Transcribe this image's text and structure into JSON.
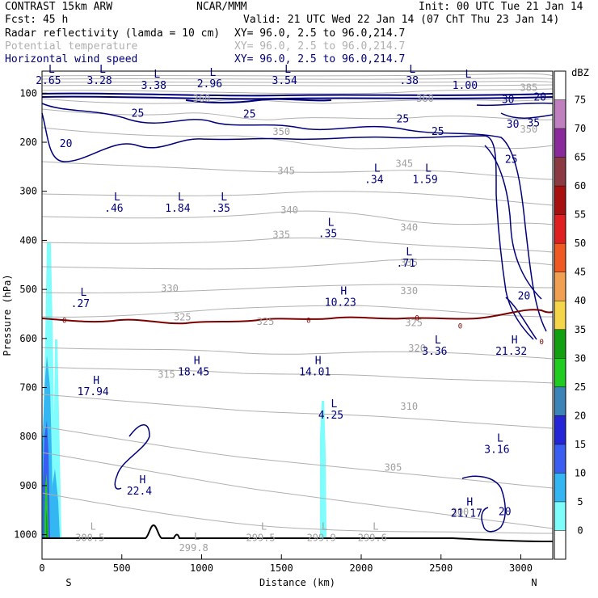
{
  "header": {
    "model": "CONTRAST 15km ARW",
    "producer": "NCAR/MMM",
    "init": "Init: 00 UTC Tue 21 Jan 14",
    "fcst": "Fcst:  45 h",
    "valid": "Valid: 21 UTC Wed 22 Jan 14 (07 ChT Thu 23 Jan 14)",
    "fields": [
      {
        "name": "Radar reflectivity (lamda = 10 cm)",
        "xy": "XY=  96.0,  2.5 to  96.0,214.7",
        "color": "#000000"
      },
      {
        "name": "Potential temperature",
        "xy": "XY=  96.0,  2.5 to  96.0,214.7",
        "color": "#b0b0b0"
      },
      {
        "name": "Horizontal wind speed",
        "xy": "XY=  96.0,  2.5 to  96.0,214.7",
        "color": "#00007a"
      }
    ]
  },
  "chart_data": {
    "type": "cross-section",
    "xlabel": "Distance (km)",
    "ylabel": "Pressure (hPa)",
    "x_ticks": [
      0,
      500,
      1000,
      1500,
      2000,
      2500,
      3000
    ],
    "y_ticks": [
      100,
      200,
      300,
      400,
      500,
      600,
      700,
      800,
      900,
      1000
    ],
    "xlim": [
      0,
      3200
    ],
    "ylim": [
      1050,
      55
    ],
    "endpoints": {
      "left": "S",
      "right": "N"
    },
    "colorbar": {
      "unit": "dBZ",
      "levels": [
        0,
        5,
        10,
        15,
        20,
        25,
        30,
        35,
        40,
        45,
        50,
        55,
        60,
        65,
        70,
        75
      ],
      "colors": [
        "#ffffff",
        "#7ffcfc",
        "#33b6f2",
        "#3a5ef2",
        "#2525d8",
        "#3c84b8",
        "#1fcc1f",
        "#10a010",
        "#f5d54a",
        "#f0a050",
        "#f05a22",
        "#e02020",
        "#a81010",
        "#8a3a40",
        "#8a2a9a",
        "#c080c0",
        "#ffffff"
      ]
    },
    "theta_labels": [
      {
        "text": "385",
        "x": 3050,
        "y": 95
      },
      {
        "text": "360",
        "x": 1000,
        "y": 118
      },
      {
        "text": "360",
        "x": 2400,
        "y": 118
      },
      {
        "text": "350",
        "x": 1500,
        "y": 185
      },
      {
        "text": "350",
        "x": 3050,
        "y": 180
      },
      {
        "text": "345",
        "x": 1530,
        "y": 265
      },
      {
        "text": "345",
        "x": 2270,
        "y": 250
      },
      {
        "text": "340",
        "x": 1550,
        "y": 345
      },
      {
        "text": "340",
        "x": 2300,
        "y": 380
      },
      {
        "text": "335",
        "x": 1500,
        "y": 395
      },
      {
        "text": "335",
        "x": 2300,
        "y": 452
      },
      {
        "text": "330",
        "x": 800,
        "y": 505
      },
      {
        "text": "330",
        "x": 2300,
        "y": 510
      },
      {
        "text": "325",
        "x": 880,
        "y": 563
      },
      {
        "text": "325",
        "x": 1400,
        "y": 572
      },
      {
        "text": "325",
        "x": 2330,
        "y": 575
      },
      {
        "text": "320",
        "x": 2350,
        "y": 627
      },
      {
        "text": "315",
        "x": 780,
        "y": 680
      },
      {
        "text": "310",
        "x": 2300,
        "y": 745
      },
      {
        "text": "305",
        "x": 2200,
        "y": 870
      },
      {
        "text": "300",
        "x": 2620,
        "y": 960
      }
    ],
    "wind_labels": [
      {
        "text": "30",
        "x": 2920,
        "y": 120
      },
      {
        "text": "30",
        "x": 2950,
        "y": 170
      },
      {
        "text": "35",
        "x": 3080,
        "y": 168
      },
      {
        "text": "20",
        "x": 3120,
        "y": 115
      },
      {
        "text": "25",
        "x": 2260,
        "y": 160
      },
      {
        "text": "25",
        "x": 2480,
        "y": 185
      },
      {
        "text": "25",
        "x": 2940,
        "y": 242
      },
      {
        "text": "25",
        "x": 600,
        "y": 148
      },
      {
        "text": "25",
        "x": 1300,
        "y": 150
      },
      {
        "text": "20",
        "x": 150,
        "y": 210
      },
      {
        "text": "20",
        "x": 3020,
        "y": 520
      },
      {
        "text": "20",
        "x": 2900,
        "y": 960
      }
    ],
    "freezing_labels": [
      {
        "text": "0",
        "x": 140,
        "y": 568
      },
      {
        "text": "0",
        "x": 1670,
        "y": 568
      },
      {
        "text": "0",
        "x": 2350,
        "y": 563
      },
      {
        "text": "0",
        "x": 2620,
        "y": 580
      },
      {
        "text": "0",
        "x": 3130,
        "y": 612
      }
    ],
    "extrema": [
      {
        "type": "L",
        "value": "2.65",
        "x": 40,
        "y": 78
      },
      {
        "type": "L",
        "value": "3.28",
        "x": 360,
        "y": 78
      },
      {
        "type": "L",
        "value": "3.38",
        "x": 700,
        "y": 88
      },
      {
        "type": "L",
        "value": "2.96",
        "x": 1050,
        "y": 85
      },
      {
        "type": "L",
        "value": "3.54",
        "x": 1520,
        "y": 78
      },
      {
        "type": "L",
        "value": ".38",
        "x": 2300,
        "y": 78
      },
      {
        "type": "L",
        "value": "1.00",
        "x": 2650,
        "y": 88
      },
      {
        "type": "L",
        "value": ".34",
        "x": 2080,
        "y": 280
      },
      {
        "type": "L",
        "value": "1.59",
        "x": 2400,
        "y": 280
      },
      {
        "type": "L",
        "value": ".46",
        "x": 450,
        "y": 338
      },
      {
        "type": "L",
        "value": "1.84",
        "x": 850,
        "y": 338
      },
      {
        "type": "L",
        "value": ".35",
        "x": 1120,
        "y": 338
      },
      {
        "type": "L",
        "value": ".35",
        "x": 1790,
        "y": 390
      },
      {
        "type": "L",
        "value": ".71",
        "x": 2280,
        "y": 450
      },
      {
        "type": "L",
        "value": ".27",
        "x": 240,
        "y": 533
      },
      {
        "type": "H",
        "value": "10.23",
        "x": 1870,
        "y": 530
      },
      {
        "type": "L",
        "value": "3.36",
        "x": 2460,
        "y": 630
      },
      {
        "type": "H",
        "value": "21.32",
        "x": 2940,
        "y": 630
      },
      {
        "type": "H",
        "value": "18.45",
        "x": 950,
        "y": 672
      },
      {
        "type": "H",
        "value": "14.01",
        "x": 1710,
        "y": 672
      },
      {
        "type": "H",
        "value": "17.94",
        "x": 320,
        "y": 712
      },
      {
        "type": "L",
        "value": "4.25",
        "x": 1810,
        "y": 760
      },
      {
        "type": "L",
        "value": "3.16",
        "x": 2850,
        "y": 830
      },
      {
        "type": "H",
        "value": "22.4",
        "x": 610,
        "y": 915
      },
      {
        "type": "H",
        "value": "21.17",
        "x": 2660,
        "y": 960
      },
      {
        "type": "L",
        "value": "300.5",
        "x": 300,
        "y": 1010
      },
      {
        "type": "L",
        "value": "299.8",
        "x": 950,
        "y": 1030
      },
      {
        "type": "L",
        "value": "299.5",
        "x": 1370,
        "y": 1010
      },
      {
        "type": "L",
        "value": "299.9",
        "x": 1750,
        "y": 1010
      },
      {
        "type": "L",
        "value": "299.6",
        "x": 2070,
        "y": 1010
      }
    ]
  }
}
